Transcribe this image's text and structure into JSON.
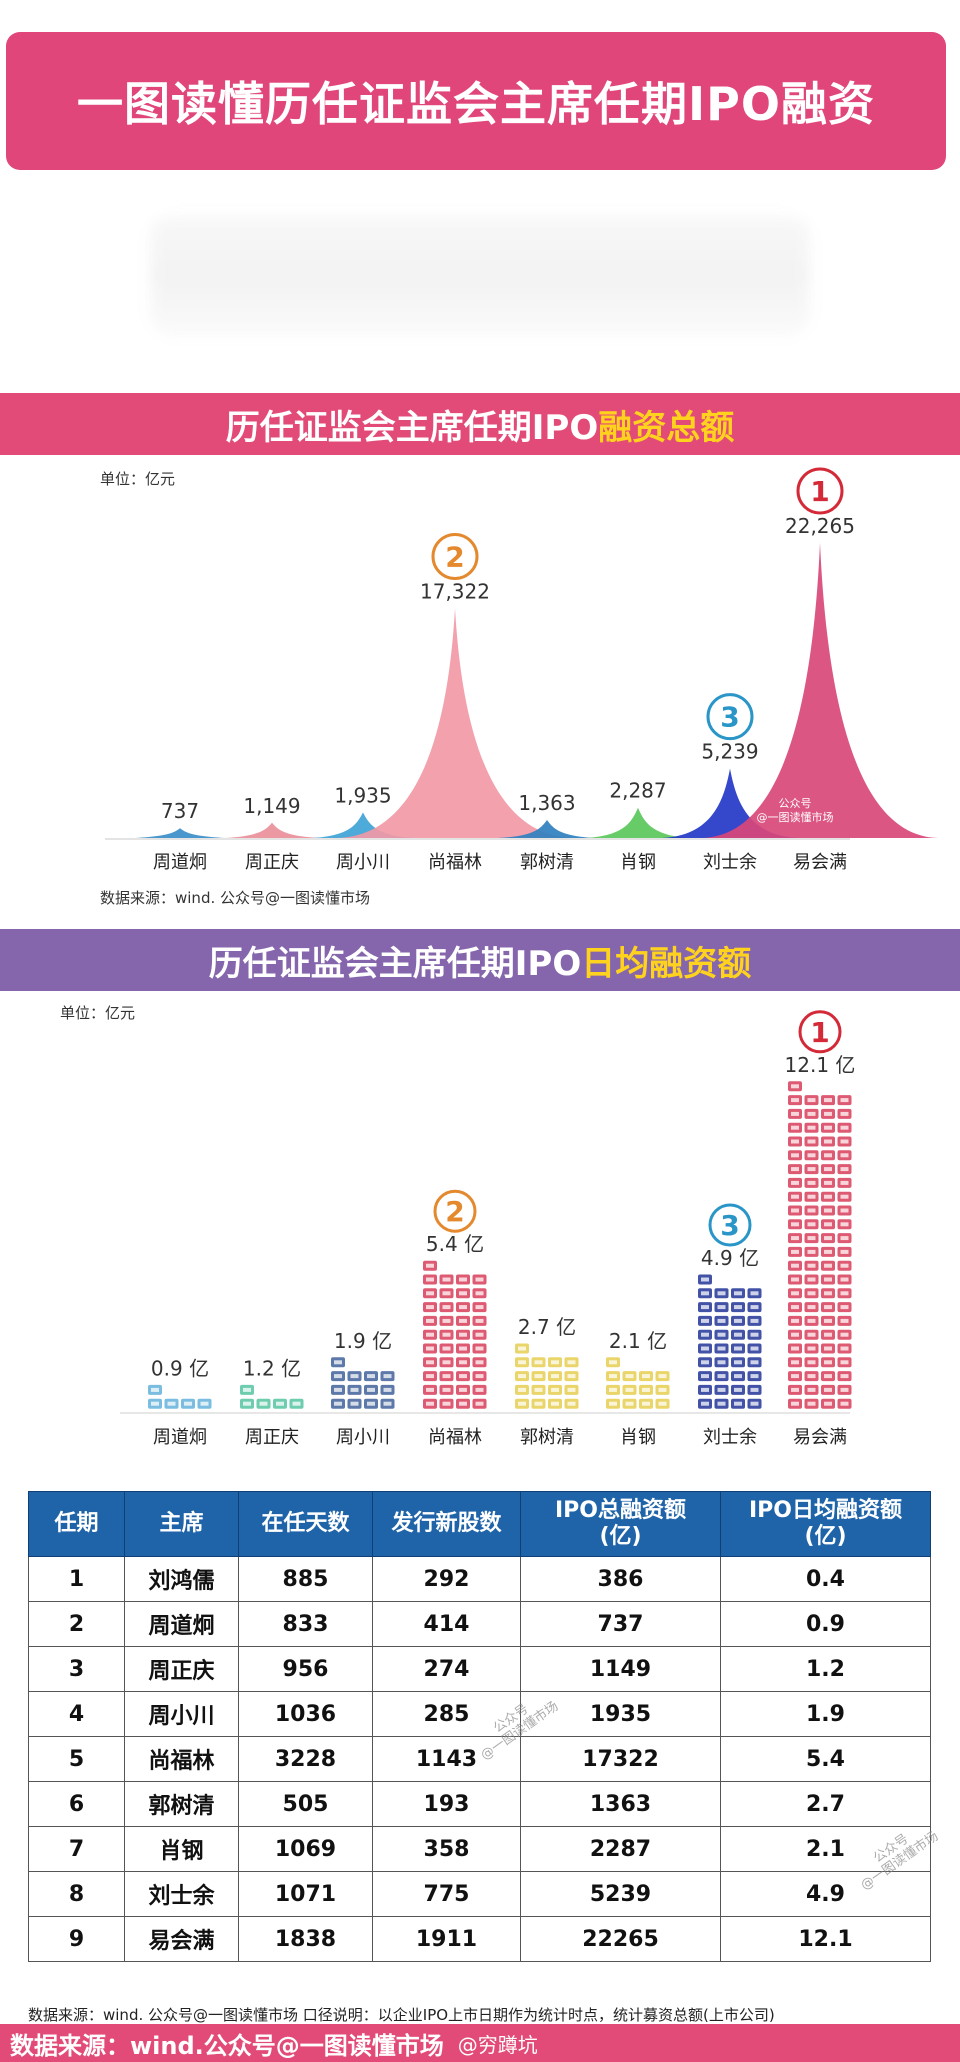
{
  "title": "一图读懂历任证监会主席任期IPO融资",
  "section1": {
    "title_main": "历任证监会主席任期IPO",
    "title_highlight": "融资总额"
  },
  "section2": {
    "title_main": "历任证监会主席任期IPO",
    "title_highlight": "日均融资额"
  },
  "colors": {
    "banner": "#e0467a",
    "section1_bar": "#e24b78",
    "section2_bar": "#8566ad",
    "highlight": "#ffd21e",
    "table_header": "#1f64a8",
    "rank_1": "#d42a38",
    "rank_2": "#e4892d",
    "rank_3": "#2a96c8"
  },
  "chart_data": [
    {
      "type": "area",
      "title": "历任证监会主席任期IPO融资总额",
      "unit_label": "单位：亿元",
      "source": "数据来源：wind. 公众号@一图读懂市场",
      "categories": [
        "周道炯",
        "周正庆",
        "周小川",
        "尚福林",
        "郭树清",
        "肖钢",
        "刘士余",
        "易会满"
      ],
      "values": [
        737,
        1149,
        1935,
        17322,
        1363,
        2287,
        5239,
        22265
      ],
      "value_labels": [
        "737",
        "1,149",
        "1,935",
        "17,322",
        "1,363",
        "2,287",
        "5,239",
        "22,265"
      ],
      "ranks": [
        null,
        null,
        null,
        "2",
        null,
        null,
        "3",
        "1"
      ],
      "colors": [
        "#3a8ec8",
        "#e98f9a",
        "#3fa3d6",
        "#f199a6",
        "#2f7fbf",
        "#5ac85a",
        "#2438c8",
        "#d9487a"
      ],
      "watermark": [
        "公众号",
        "@一图读懂市场"
      ],
      "ylim": [
        0,
        22265
      ]
    },
    {
      "type": "bar",
      "title": "历任证监会主席任期IPO日均融资额",
      "unit_label": "单位：亿元",
      "categories": [
        "周道炯",
        "周正庆",
        "周小川",
        "尚福林",
        "郭树清",
        "肖钢",
        "刘士余",
        "易会满"
      ],
      "values": [
        0.9,
        1.2,
        1.9,
        5.4,
        2.7,
        2.1,
        4.9,
        12.1
      ],
      "value_labels": [
        "0.9 亿",
        "1.2 亿",
        "1.9 亿",
        "5.4 亿",
        "2.7 亿",
        "2.1 亿",
        "4.9 亿",
        "12.1 亿"
      ],
      "ranks": [
        null,
        null,
        null,
        "2",
        null,
        null,
        "3",
        "1"
      ],
      "colors": [
        "#6cb6dd",
        "#5fc8a6",
        "#4a6aa0",
        "#d94863",
        "#e8d05a",
        "#e8d05a",
        "#2d3f9c",
        "#d94863"
      ],
      "ylim": [
        0,
        12.1
      ]
    }
  ],
  "table": {
    "headers": [
      "任期",
      "主席",
      "在任天数",
      "发行新股数",
      "IPO总融资额\n(亿)",
      "IPO日均融资额\n(亿)"
    ],
    "rows": [
      [
        "1",
        "刘鸿儒",
        "885",
        "292",
        "386",
        "0.4"
      ],
      [
        "2",
        "周道炯",
        "833",
        "414",
        "737",
        "0.9"
      ],
      [
        "3",
        "周正庆",
        "956",
        "274",
        "1149",
        "1.2"
      ],
      [
        "4",
        "周小川",
        "1036",
        "285",
        "1935",
        "1.9"
      ],
      [
        "5",
        "尚福林",
        "3228",
        "1143",
        "17322",
        "5.4"
      ],
      [
        "6",
        "郭树清",
        "505",
        "193",
        "1363",
        "2.7"
      ],
      [
        "7",
        "肖钢",
        "1069",
        "358",
        "2287",
        "2.1"
      ],
      [
        "8",
        "刘士余",
        "1071",
        "775",
        "5239",
        "4.9"
      ],
      [
        "9",
        "易会满",
        "1838",
        "1911",
        "22265",
        "12.1"
      ]
    ],
    "watermarks": [
      "公众号\n@一图读懂市场",
      "公众号\n@一图读懂市场"
    ],
    "footnote": "数据来源：wind. 公众号@一图读懂市场    口径说明：以企业IPO上市日期作为统计时点，统计募资总额(上市公司)"
  },
  "bottom": {
    "source": "数据来源：wind.公众号@一图读懂市场",
    "handle": "@穷蹲坑"
  }
}
